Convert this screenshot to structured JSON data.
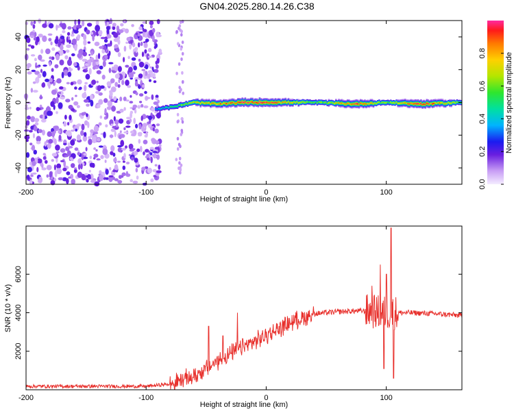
{
  "title": "GN04.2025.280.14.26.C38",
  "colorbar": {
    "label": "Normalized spectral amplitude",
    "ticks": [
      "0.0",
      "0.2",
      "0.4",
      "0.6",
      "0.8"
    ],
    "range": [
      0,
      1
    ]
  },
  "chart_data": [
    {
      "type": "heatmap",
      "xlabel": "Height of straight line (km)",
      "ylabel": "Frequency (Hz)",
      "xlim": [
        -200,
        163
      ],
      "ylim": [
        -50,
        50
      ],
      "xticks": [
        "-200",
        "-100",
        "0",
        "100"
      ],
      "yticks": [
        "-40",
        "-20",
        "0",
        "20",
        "40"
      ],
      "noise_region_x": [
        -200,
        -88
      ],
      "ridge_profile": [
        {
          "x": -92,
          "freq": -4,
          "amp": 0.35
        },
        {
          "x": -80,
          "freq": -3,
          "amp": 0.5
        },
        {
          "x": -60,
          "freq": 0,
          "amp": 0.7
        },
        {
          "x": -40,
          "freq": -1,
          "amp": 0.85
        },
        {
          "x": -20,
          "freq": 0,
          "amp": 0.9
        },
        {
          "x": 0,
          "freq": 0,
          "amp": 0.95
        },
        {
          "x": 40,
          "freq": 0,
          "amp": 0.55
        },
        {
          "x": 75,
          "freq": -1,
          "amp": 0.9
        },
        {
          "x": 100,
          "freq": 0,
          "amp": 0.6
        },
        {
          "x": 130,
          "freq": -1,
          "amp": 0.95
        },
        {
          "x": 163,
          "freq": 0,
          "amp": 0.6
        }
      ]
    },
    {
      "type": "line",
      "xlabel": "Height of straight line (km)",
      "ylabel": "SNR (10 * v/v)",
      "xlim": [
        -200,
        163
      ],
      "ylim": [
        0,
        8500
      ],
      "xticks": [
        "-200",
        "-100",
        "0",
        "100"
      ],
      "yticks": [
        "2000",
        "4000",
        "6000"
      ],
      "color": "#e8302c",
      "trend": [
        {
          "x": -200,
          "y": 180
        },
        {
          "x": -100,
          "y": 180
        },
        {
          "x": -80,
          "y": 300
        },
        {
          "x": -60,
          "y": 700
        },
        {
          "x": -40,
          "y": 1500
        },
        {
          "x": -20,
          "y": 2200
        },
        {
          "x": 0,
          "y": 2800
        },
        {
          "x": 20,
          "y": 3500
        },
        {
          "x": 40,
          "y": 3950
        },
        {
          "x": 60,
          "y": 4050
        },
        {
          "x": 80,
          "y": 4100
        },
        {
          "x": 100,
          "y": 4000
        },
        {
          "x": 120,
          "y": 4000
        },
        {
          "x": 140,
          "y": 3950
        },
        {
          "x": 163,
          "y": 3850
        }
      ],
      "spikes": [
        {
          "x": -48,
          "y": 3300
        },
        {
          "x": -36,
          "y": 2800
        },
        {
          "x": -24,
          "y": 4000
        },
        {
          "x": 88,
          "y": 5400
        },
        {
          "x": 95,
          "y": 6500
        },
        {
          "x": 100,
          "y": 6000
        },
        {
          "x": 104,
          "y": 8400
        },
        {
          "x": 106,
          "y": 600
        },
        {
          "x": 98,
          "y": 1100
        }
      ]
    }
  ]
}
